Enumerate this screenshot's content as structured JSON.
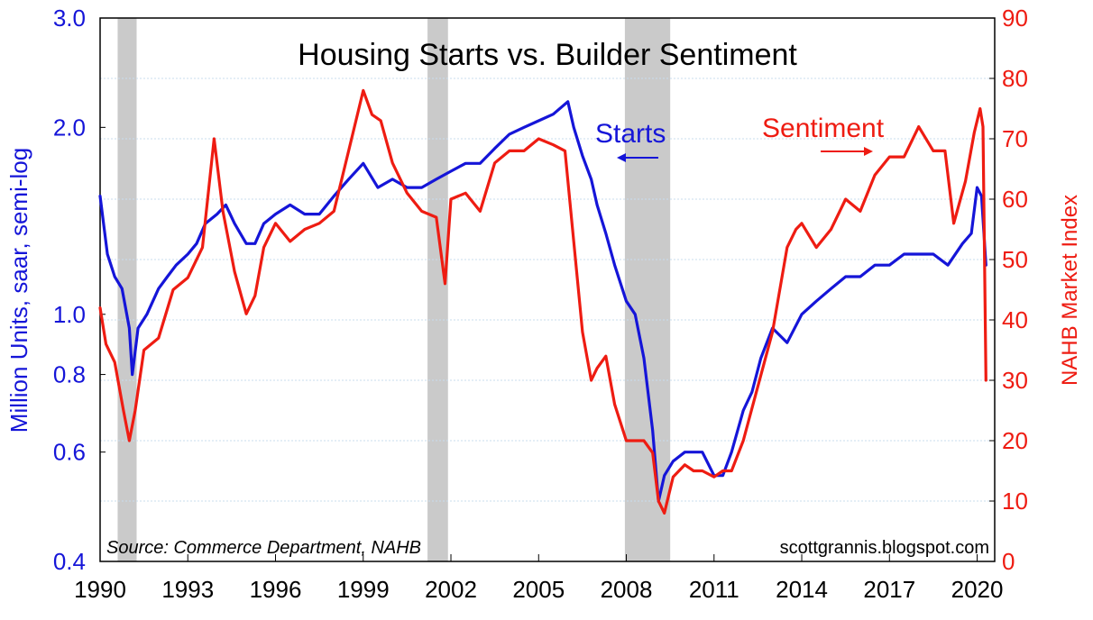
{
  "chart_data": {
    "type": "line",
    "title": "Housing Starts vs. Builder Sentiment",
    "ylabel_left": "Million Units, saar, semi-log",
    "ylabel_right": "NAHB Market Index",
    "xlabel": "",
    "x_range": [
      1990.0,
      2020.6
    ],
    "left_axis": {
      "scale": "log",
      "range": [
        0.4,
        3.0
      ],
      "ticks": [
        "3.0",
        "2.0",
        "1.0",
        "0.8",
        "0.6",
        "0.4"
      ],
      "tick_values": [
        3.0,
        2.0,
        1.0,
        0.8,
        0.6,
        0.4
      ]
    },
    "right_axis": {
      "scale": "linear",
      "range": [
        0,
        90
      ],
      "ticks": [
        "90",
        "80",
        "70",
        "60",
        "50",
        "40",
        "30",
        "20",
        "10",
        "0"
      ],
      "tick_values": [
        90,
        80,
        70,
        60,
        50,
        40,
        30,
        20,
        10,
        0
      ]
    },
    "x_ticks": [
      "1990",
      "1993",
      "1996",
      "1999",
      "2002",
      "2005",
      "2008",
      "2011",
      "2014",
      "2017",
      "2020"
    ],
    "x_tick_values": [
      1990,
      1993,
      1996,
      1999,
      2002,
      2005,
      2008,
      2011,
      2014,
      2017,
      2020
    ],
    "recessions": [
      [
        1990.6,
        1991.25
      ],
      [
        2001.2,
        2001.9
      ],
      [
        2007.95,
        2009.5
      ]
    ],
    "series": [
      {
        "name": "Starts",
        "axis": "left",
        "color": "#1515d8",
        "x": [
          1990.0,
          1990.25,
          1990.5,
          1990.75,
          1991.0,
          1991.1,
          1991.3,
          1991.6,
          1992.0,
          1992.3,
          1992.6,
          1993.0,
          1993.3,
          1993.6,
          1994.0,
          1994.3,
          1994.6,
          1995.0,
          1995.3,
          1995.6,
          1996.0,
          1996.5,
          1997.0,
          1997.5,
          1998.0,
          1998.5,
          1999.0,
          1999.5,
          2000.0,
          2000.5,
          2001.0,
          2001.5,
          2002.0,
          2002.5,
          2003.0,
          2003.5,
          2004.0,
          2004.5,
          2005.0,
          2005.5,
          2006.0,
          2006.2,
          2006.5,
          2006.8,
          2007.0,
          2007.3,
          2007.6,
          2008.0,
          2008.3,
          2008.6,
          2008.9,
          2009.1,
          2009.3,
          2009.6,
          2010.0,
          2010.3,
          2010.6,
          2011.0,
          2011.3,
          2011.6,
          2012.0,
          2012.3,
          2012.6,
          2013.0,
          2013.5,
          2014.0,
          2014.5,
          2015.0,
          2015.5,
          2016.0,
          2016.5,
          2017.0,
          2017.5,
          2018.0,
          2018.5,
          2019.0,
          2019.5,
          2019.8,
          2020.0,
          2020.15,
          2020.3
        ],
        "values": [
          1.55,
          1.25,
          1.15,
          1.1,
          0.95,
          0.8,
          0.95,
          1.0,
          1.1,
          1.15,
          1.2,
          1.25,
          1.3,
          1.4,
          1.45,
          1.5,
          1.4,
          1.3,
          1.3,
          1.4,
          1.45,
          1.5,
          1.45,
          1.45,
          1.55,
          1.65,
          1.75,
          1.6,
          1.65,
          1.6,
          1.6,
          1.65,
          1.7,
          1.75,
          1.75,
          1.85,
          1.95,
          2.0,
          2.05,
          2.1,
          2.2,
          2.0,
          1.8,
          1.65,
          1.5,
          1.35,
          1.2,
          1.05,
          1.0,
          0.85,
          0.65,
          0.5,
          0.55,
          0.58,
          0.6,
          0.6,
          0.6,
          0.55,
          0.55,
          0.6,
          0.7,
          0.75,
          0.85,
          0.95,
          0.9,
          1.0,
          1.05,
          1.1,
          1.15,
          1.15,
          1.2,
          1.2,
          1.25,
          1.25,
          1.25,
          1.2,
          1.3,
          1.35,
          1.6,
          1.55,
          1.2
        ]
      },
      {
        "name": "Sentiment",
        "axis": "right",
        "color": "#ee1c12",
        "x": [
          1990.0,
          1990.2,
          1990.5,
          1990.8,
          1991.0,
          1991.2,
          1991.5,
          1992.0,
          1992.5,
          1993.0,
          1993.5,
          1993.9,
          1994.2,
          1994.6,
          1995.0,
          1995.3,
          1995.6,
          1996.0,
          1996.5,
          1997.0,
          1997.5,
          1998.0,
          1998.5,
          1999.0,
          1999.3,
          1999.6,
          2000.0,
          2000.5,
          2001.0,
          2001.5,
          2001.8,
          2002.0,
          2002.5,
          2003.0,
          2003.5,
          2004.0,
          2004.5,
          2005.0,
          2005.5,
          2005.9,
          2006.2,
          2006.5,
          2006.8,
          2007.0,
          2007.3,
          2007.6,
          2008.0,
          2008.3,
          2008.6,
          2008.9,
          2009.1,
          2009.3,
          2009.6,
          2010.0,
          2010.3,
          2010.6,
          2011.0,
          2011.3,
          2011.6,
          2012.0,
          2012.5,
          2013.0,
          2013.5,
          2013.8,
          2014.0,
          2014.5,
          2015.0,
          2015.5,
          2016.0,
          2016.5,
          2017.0,
          2017.5,
          2018.0,
          2018.5,
          2018.9,
          2019.2,
          2019.6,
          2019.9,
          2020.1,
          2020.2,
          2020.3
        ],
        "values": [
          42,
          36,
          33,
          25,
          20,
          25,
          35,
          37,
          45,
          47,
          52,
          70,
          58,
          48,
          41,
          44,
          52,
          56,
          53,
          55,
          56,
          58,
          68,
          78,
          74,
          73,
          66,
          61,
          58,
          57,
          46,
          60,
          61,
          58,
          66,
          68,
          68,
          70,
          69,
          68,
          53,
          38,
          30,
          32,
          34,
          26,
          20,
          20,
          20,
          18,
          10,
          8,
          14,
          16,
          15,
          15,
          14,
          15,
          15,
          20,
          29,
          38,
          52,
          55,
          56,
          52,
          55,
          60,
          58,
          64,
          67,
          67,
          72,
          68,
          68,
          56,
          63,
          71,
          75,
          72,
          30
        ]
      }
    ],
    "annotations": [
      {
        "text": "Starts",
        "series": "Starts",
        "arrow": "left"
      },
      {
        "text": "Sentiment",
        "series": "Sentiment",
        "arrow": "right"
      }
    ],
    "source": "Source:  Commerce Department, NAHB",
    "credit": "scottgrannis.blogspot.com"
  },
  "colors": {
    "starts": "#1515d8",
    "sentiment": "#ee1c12",
    "recession": "#cacaca",
    "grid": "#c8dcee"
  }
}
